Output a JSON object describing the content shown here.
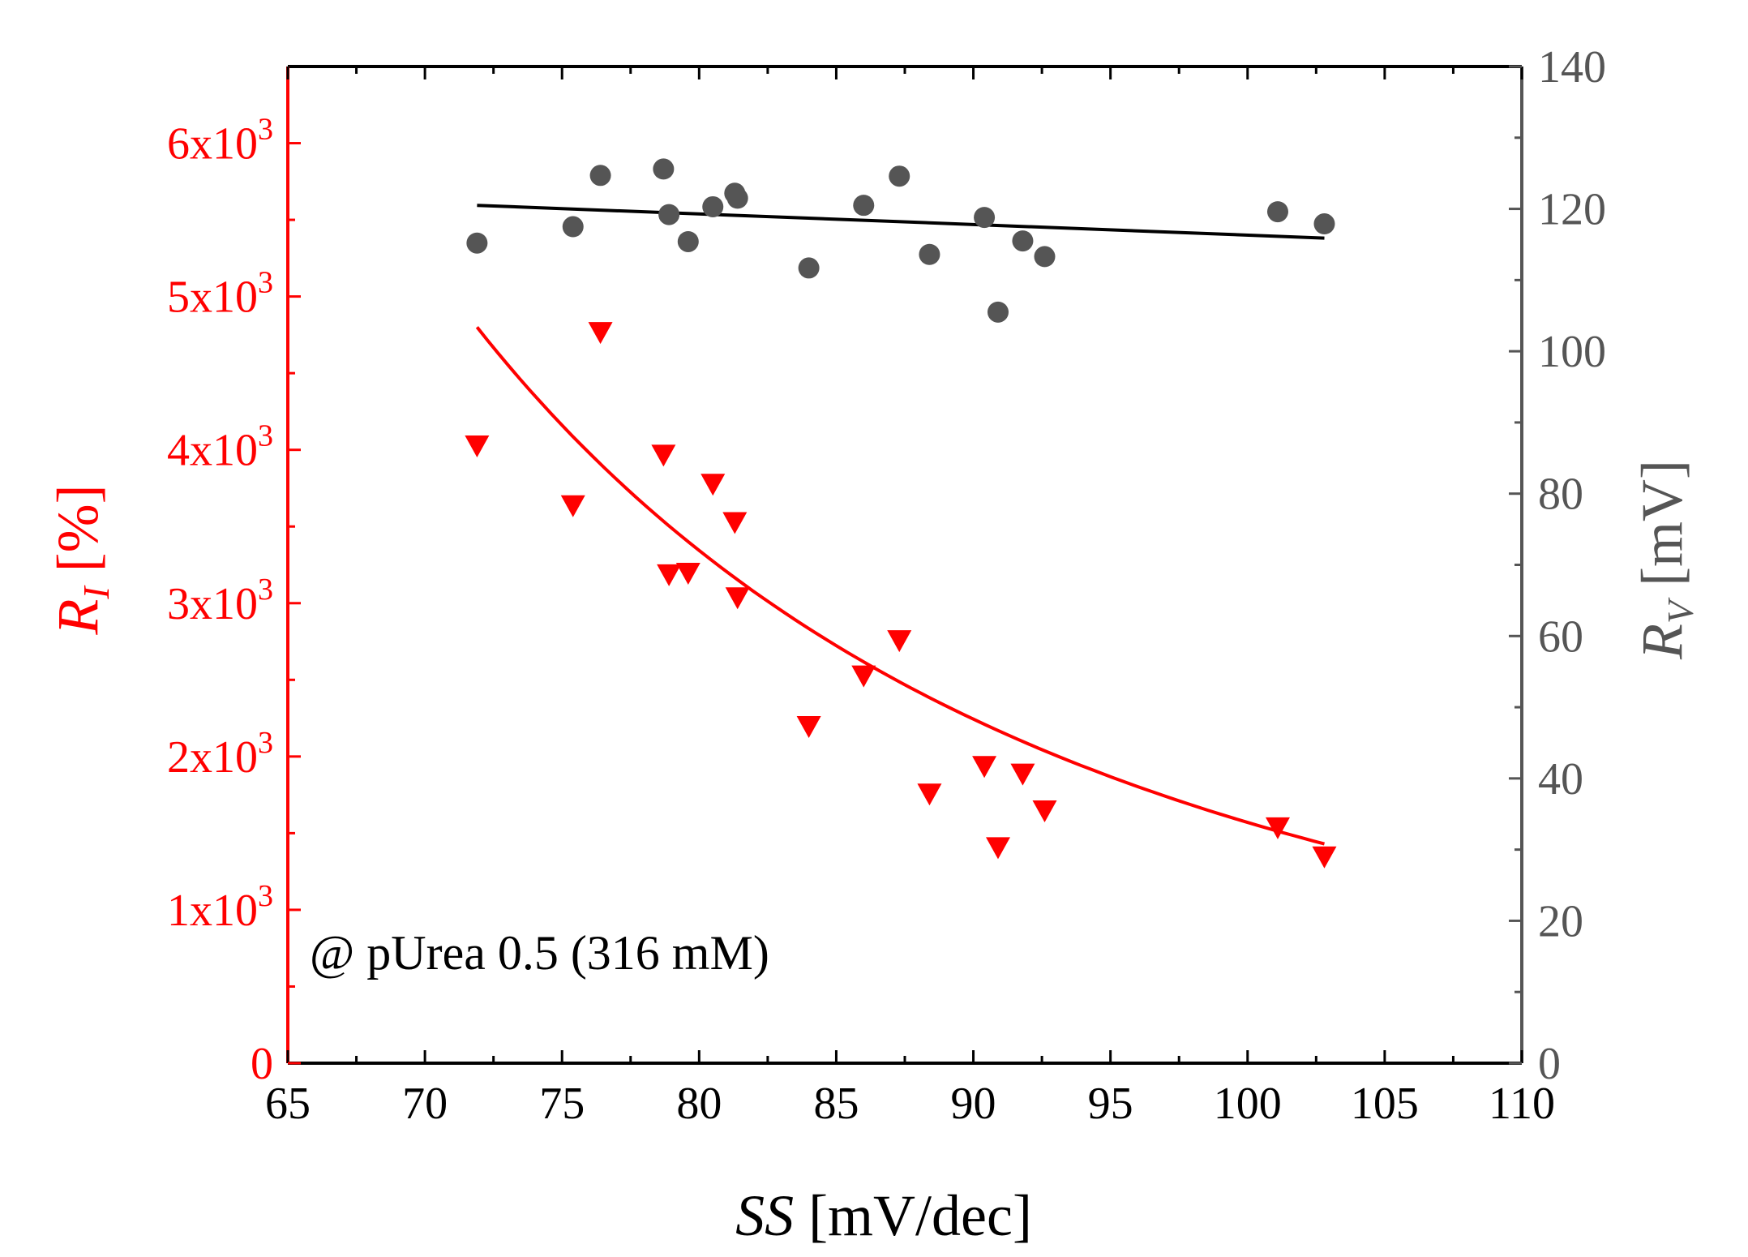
{
  "chart_data": {
    "type": "scatter",
    "title": "",
    "annotation": "@ pUrea 0.5  (316 mM)",
    "x_axis": {
      "label_italic": "SS",
      "label_rest": " [mV/dec]",
      "range": [
        65,
        110
      ],
      "ticks": [
        65,
        70,
        75,
        80,
        85,
        90,
        95,
        100,
        105,
        110
      ],
      "tick_labels": [
        "65",
        "70",
        "75",
        "80",
        "85",
        "90",
        "95",
        "100",
        "105",
        "110"
      ]
    },
    "y_left": {
      "label_italic": "R",
      "label_sub": "I",
      "label_rest": " [%]",
      "range": [
        0,
        6500
      ],
      "color": "#ff0000",
      "ticks": [
        0,
        1000,
        2000,
        3000,
        4000,
        5000,
        6000
      ],
      "tick_labels": [
        {
          "value": 0,
          "base": "0",
          "exp": ""
        },
        {
          "value": 1000,
          "base": "1x10",
          "exp": "3"
        },
        {
          "value": 2000,
          "base": "2x10",
          "exp": "3"
        },
        {
          "value": 3000,
          "base": "3x10",
          "exp": "3"
        },
        {
          "value": 4000,
          "base": "4x10",
          "exp": "3"
        },
        {
          "value": 5000,
          "base": "5x10",
          "exp": "3"
        },
        {
          "value": 6000,
          "base": "6x10",
          "exp": "3"
        }
      ]
    },
    "y_right": {
      "label_italic": "R",
      "label_sub": "V",
      "label_rest": " [mV]",
      "range": [
        0,
        140
      ],
      "color": "#555555",
      "ticks": [
        0,
        20,
        40,
        60,
        80,
        100,
        120,
        140
      ],
      "tick_labels": [
        "0",
        "20",
        "40",
        "60",
        "80",
        "100",
        "120",
        "140"
      ]
    },
    "series": [
      {
        "name": "R_I",
        "axis": "left",
        "marker": "triangle-down",
        "color": "#ff0000",
        "points": [
          [
            71.9,
            4030
          ],
          [
            75.4,
            3640
          ],
          [
            76.4,
            4770
          ],
          [
            78.7,
            3970
          ],
          [
            78.9,
            3190
          ],
          [
            79.6,
            3200
          ],
          [
            80.5,
            3780
          ],
          [
            81.3,
            3530
          ],
          [
            81.4,
            3040
          ],
          [
            84.0,
            2200
          ],
          [
            86.0,
            2530
          ],
          [
            87.3,
            2760
          ],
          [
            88.4,
            1760
          ],
          [
            90.4,
            1940
          ],
          [
            90.9,
            1410
          ],
          [
            91.8,
            1890
          ],
          [
            92.6,
            1650
          ],
          [
            101.1,
            1540
          ],
          [
            102.8,
            1350
          ]
        ]
      },
      {
        "name": "R_V",
        "axis": "right",
        "marker": "circle",
        "color": "#555555",
        "points": [
          [
            71.9,
            115.2
          ],
          [
            75.4,
            117.5
          ],
          [
            76.4,
            124.7
          ],
          [
            78.7,
            125.6
          ],
          [
            78.9,
            119.2
          ],
          [
            79.6,
            115.4
          ],
          [
            80.5,
            120.3
          ],
          [
            81.3,
            122.2
          ],
          [
            81.4,
            121.5
          ],
          [
            84.0,
            111.7
          ],
          [
            86.0,
            120.5
          ],
          [
            87.3,
            124.6
          ],
          [
            88.4,
            113.6
          ],
          [
            90.4,
            118.8
          ],
          [
            90.9,
            105.5
          ],
          [
            91.8,
            115.5
          ],
          [
            92.6,
            113.3
          ],
          [
            101.1,
            119.6
          ],
          [
            102.8,
            117.9
          ]
        ]
      }
    ],
    "fits": [
      {
        "name": "R_I fit",
        "axis": "left",
        "color": "#ff0000",
        "x_range": [
          71.9,
          102.8
        ],
        "model": "power",
        "points": [
          [
            71.9,
            4800
          ],
          [
            75,
            4270
          ],
          [
            80,
            3520
          ],
          [
            85,
            2760
          ],
          [
            90,
            2120
          ],
          [
            95,
            1770
          ],
          [
            100,
            1560
          ],
          [
            102.8,
            1430
          ]
        ]
      },
      {
        "name": "R_V fit",
        "axis": "right",
        "color": "#000000",
        "x_range": [
          71.9,
          102.8
        ],
        "model": "linear",
        "points": [
          [
            71.9,
            120.5
          ],
          [
            102.8,
            115.9
          ]
        ]
      }
    ]
  }
}
